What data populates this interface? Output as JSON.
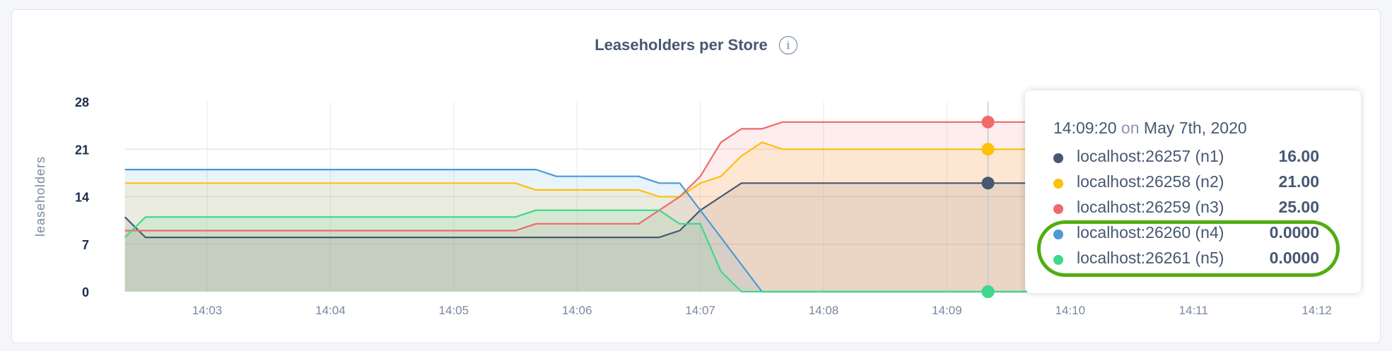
{
  "chart_data": {
    "type": "area",
    "title": "Leaseholders per Store",
    "ylabel": "leaseholders",
    "xlabel": "",
    "ylim": [
      0,
      28
    ],
    "yticks": [
      "0",
      "7",
      "14",
      "21",
      "28"
    ],
    "xticks": [
      "14:03",
      "14:04",
      "14:05",
      "14:06",
      "14:07",
      "14:08",
      "14:09",
      "14:10",
      "14:11",
      "14:12"
    ],
    "grid": true,
    "x": [
      "14:02:20",
      "14:02:30",
      "14:05:30",
      "14:05:40",
      "14:05:50",
      "14:06:30",
      "14:06:40",
      "14:06:50",
      "14:07:00",
      "14:07:10",
      "14:07:20",
      "14:07:30",
      "14:07:40",
      "14:12:00"
    ],
    "series": [
      {
        "name": "localhost:26257 (n1)",
        "color": "#475872",
        "values": [
          11,
          8,
          8,
          8,
          8,
          8,
          8,
          9,
          12,
          14,
          16,
          16,
          16,
          16
        ]
      },
      {
        "name": "localhost:26258 (n2)",
        "color": "#ffc107",
        "values": [
          16,
          16,
          16,
          15,
          15,
          15,
          14,
          14,
          16,
          17,
          20,
          22,
          21,
          21
        ]
      },
      {
        "name": "localhost:26259 (n3)",
        "color": "#ed6b6b",
        "values": [
          9,
          9,
          9,
          10,
          10,
          10,
          12,
          14,
          17,
          22,
          24,
          24,
          25,
          25
        ]
      },
      {
        "name": "localhost:26260 (n4)",
        "color": "#4a9ad6",
        "values": [
          18,
          18,
          18,
          18,
          17,
          17,
          16,
          16,
          12,
          8,
          4,
          0,
          0,
          0
        ]
      },
      {
        "name": "localhost:26261 (n5)",
        "color": "#3fd88c",
        "values": [
          8,
          11,
          11,
          12,
          12,
          12,
          12,
          10,
          10,
          3,
          0,
          0,
          0,
          0
        ]
      }
    ],
    "hover_time": "14:09:20"
  },
  "tooltip": {
    "time": "14:09:20",
    "on": "on",
    "date": "May 7th, 2020",
    "rows": [
      {
        "label": "localhost:26257 (n1)",
        "value": "16.00",
        "color": "#475872"
      },
      {
        "label": "localhost:26258 (n2)",
        "value": "21.00",
        "color": "#ffc107"
      },
      {
        "label": "localhost:26259 (n3)",
        "value": "25.00",
        "color": "#ed6b6b"
      },
      {
        "label": "localhost:26260 (n4)",
        "value": "0.0000",
        "color": "#4a9ad6"
      },
      {
        "label": "localhost:26261 (n5)",
        "value": "0.0000",
        "color": "#3fd88c"
      }
    ],
    "highlight_color": "#52ad10"
  },
  "info_icon": "i"
}
